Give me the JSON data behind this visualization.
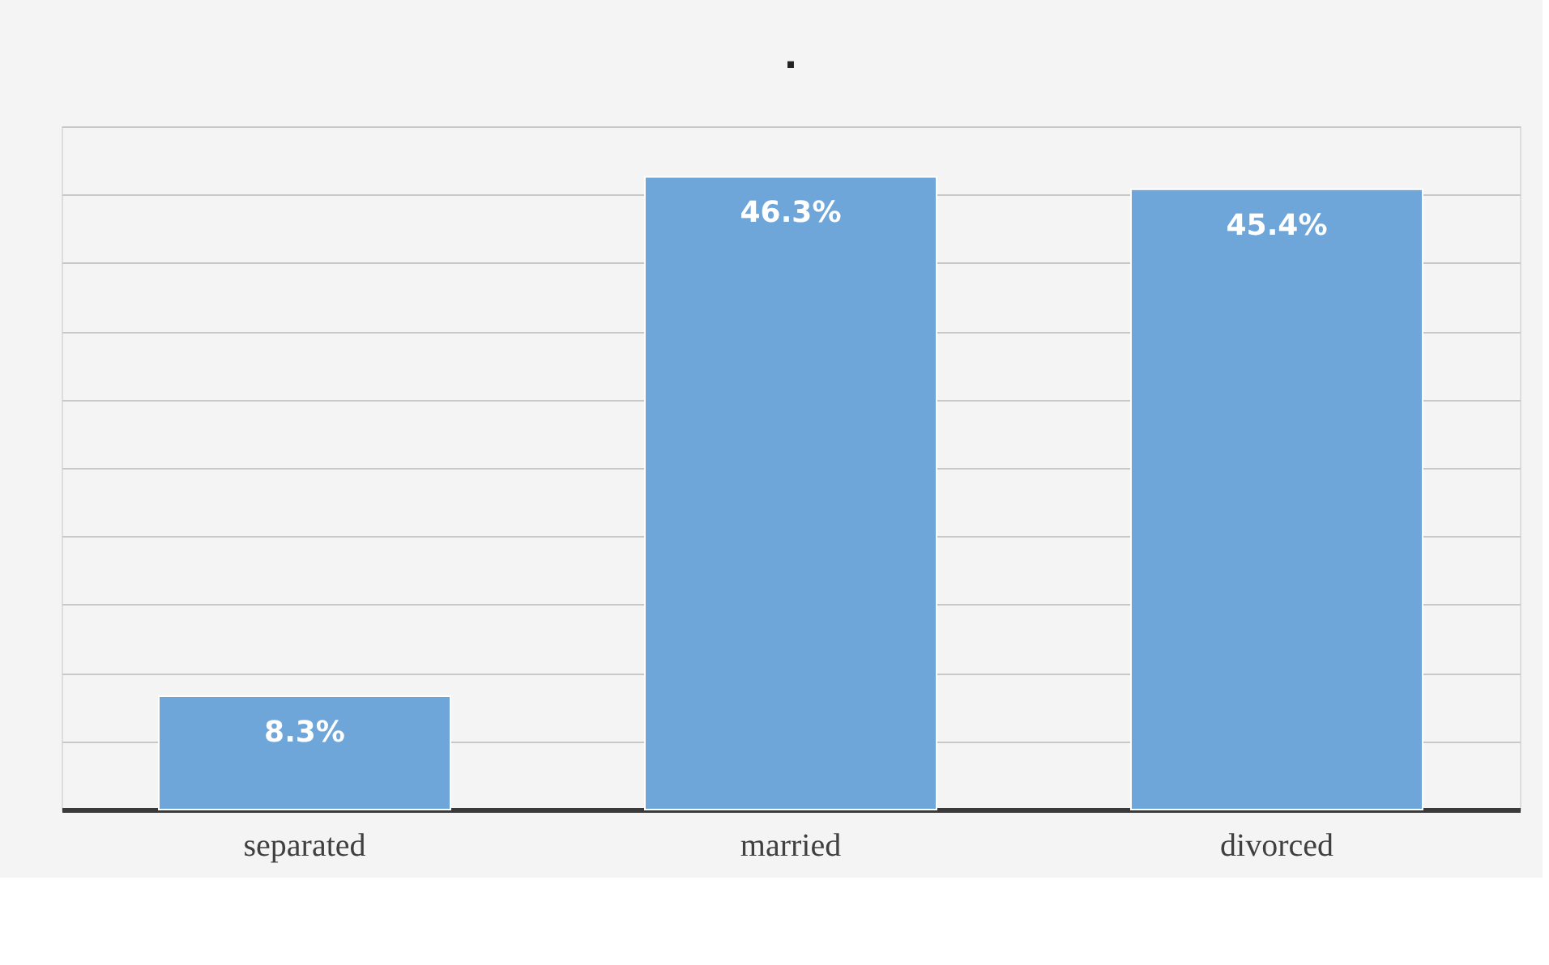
{
  "chart_data": {
    "type": "bar",
    "title": ".",
    "categories": [
      "separated",
      "married",
      "divorced"
    ],
    "values": [
      8.3,
      46.3,
      45.4
    ],
    "value_labels": [
      "8.3%",
      "46.3%",
      "45.4%"
    ],
    "color": "#6fa6da",
    "ylim": [
      0,
      50
    ],
    "yticks": [
      {
        "value": 0,
        "label": null
      },
      {
        "value": 5,
        "label": null
      },
      {
        "value": 10,
        "label": null
      },
      {
        "value": 15,
        "label": null
      },
      {
        "value": 20,
        "label": null
      },
      {
        "value": 25,
        "label": null
      },
      {
        "value": 30,
        "label": null
      },
      {
        "value": 35,
        "label": null
      },
      {
        "value": 40,
        "label": null
      },
      {
        "value": 45,
        "label": null
      },
      {
        "value": 50,
        "label": null
      }
    ],
    "grid": "y",
    "tick_labels": "x"
  }
}
